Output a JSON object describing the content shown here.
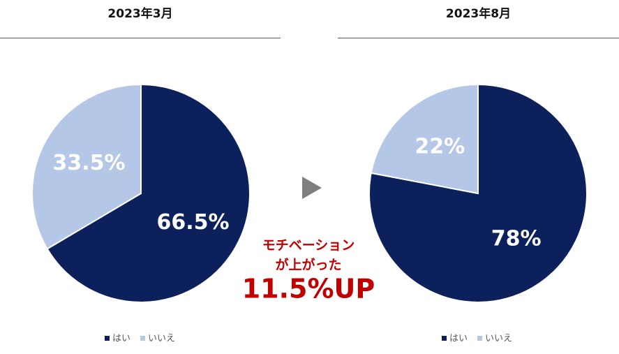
{
  "chart_data": [
    {
      "type": "pie",
      "title": "2023年3月",
      "categories": [
        "はい",
        "いいえ"
      ],
      "values": [
        66.5,
        33.5
      ],
      "value_labels": [
        "66.5%",
        "33.5%"
      ],
      "colors": [
        "#0c215c",
        "#b4c7e7"
      ]
    },
    {
      "type": "pie",
      "title": "2023年8月",
      "categories": [
        "はい",
        "いいえ"
      ],
      "values": [
        78,
        22
      ],
      "value_labels": [
        "78%",
        "22%"
      ],
      "colors": [
        "#0c215c",
        "#b4c7e7"
      ]
    }
  ],
  "annotation": {
    "lines": [
      "モチベーション",
      "が上がった"
    ],
    "highlight": "11.5%UP",
    "color": "#c00000"
  }
}
